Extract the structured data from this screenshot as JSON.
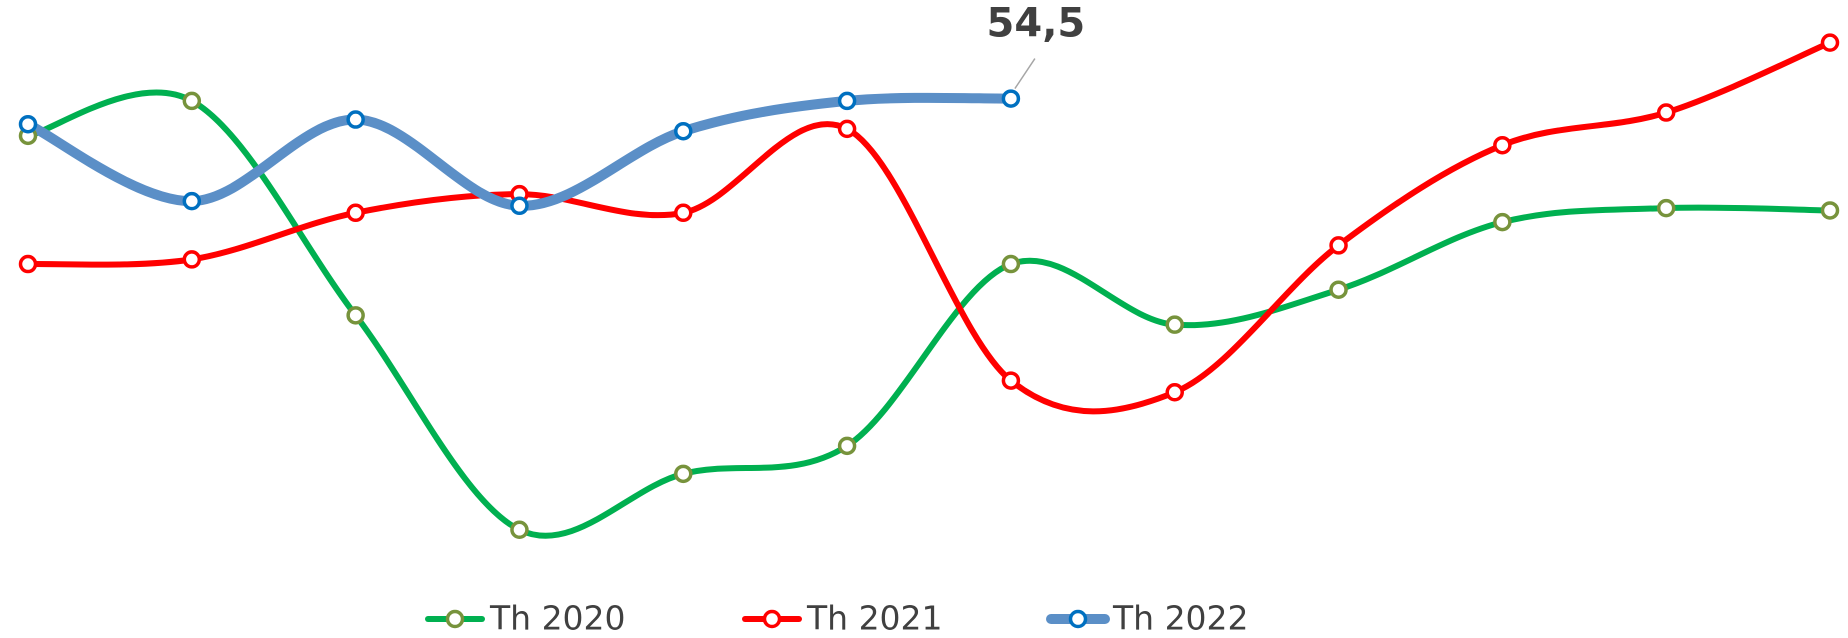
{
  "chart_data": {
    "type": "line",
    "categories": [
      null,
      null,
      null,
      null,
      null,
      null,
      null,
      null,
      null,
      null,
      null,
      null
    ],
    "ylim": [
      32,
      58
    ],
    "legend": "bottom",
    "series": [
      {
        "name": "Th 2020",
        "color": "#00b050",
        "marker_color": "#77933c",
        "values": [
          52.9,
          54.4,
          45.2,
          36.0,
          38.4,
          39.6,
          47.4,
          44.8,
          46.3,
          49.2,
          49.8,
          49.7
        ]
      },
      {
        "name": "Th 2021",
        "color": "#ff0000",
        "marker_color": "#ff0000",
        "values": [
          47.4,
          47.6,
          49.6,
          50.4,
          49.6,
          53.2,
          42.4,
          41.9,
          48.2,
          52.5,
          53.9,
          56.9
        ]
      },
      {
        "name": "Th 2022",
        "color": "#5b8fc7",
        "marker_color": "#0070c0",
        "values": [
          53.4,
          50.1,
          53.6,
          49.9,
          53.1,
          54.4,
          54.5,
          null,
          null,
          null,
          null,
          null
        ],
        "value_labels": [
          null,
          null,
          null,
          null,
          null,
          null,
          "54,5",
          null,
          null,
          null,
          null,
          null
        ]
      }
    ]
  }
}
